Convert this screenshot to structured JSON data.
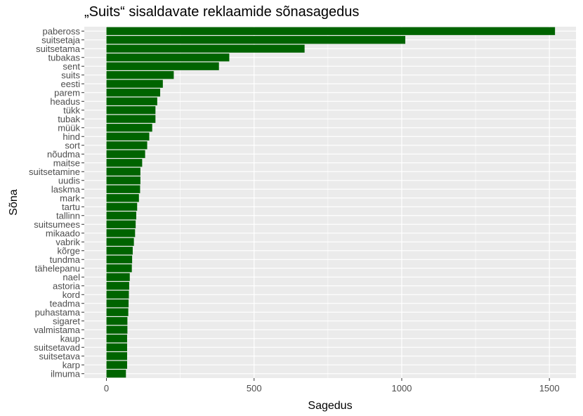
{
  "chart_data": {
    "type": "bar",
    "orientation": "horizontal",
    "title": "„Suits“ sisaldavate reklaamide sõnasagedus",
    "xlabel": "Sagedus",
    "ylabel": "Sõna",
    "xlim": [
      -75,
      1590
    ],
    "xticks": [
      0,
      500,
      1000,
      1500
    ],
    "grid": true,
    "bar_color": "#006400",
    "panel_color": "#EBEBEB",
    "categories": [
      "pabeross",
      "suitsetaja",
      "suitsetama",
      "tubakas",
      "sent",
      "suits",
      "eesti",
      "parem",
      "headus",
      "tükk",
      "tubak",
      "müük",
      "hind",
      "sort",
      "nõudma",
      "maitse",
      "suitsetamine",
      "uudis",
      "laskma",
      "mark",
      "tartu",
      "tallinn",
      "suitsumees",
      "mikaado",
      "vabrik",
      "kõrge",
      "tundma",
      "tähelepanu",
      "nael",
      "astoria",
      "kord",
      "teadma",
      "puhastama",
      "sigaret",
      "valmistama",
      "kaup",
      "suitsetavad",
      "suitsetava",
      "karp",
      "ilmuma"
    ],
    "values": [
      1519,
      1012,
      671,
      416,
      381,
      228,
      191,
      182,
      172,
      166,
      166,
      155,
      145,
      138,
      131,
      121,
      115,
      115,
      114,
      110,
      104,
      101,
      99,
      97,
      93,
      89,
      87,
      86,
      79,
      77,
      76,
      75,
      74,
      71,
      71,
      70,
      70,
      70,
      70,
      66
    ]
  }
}
